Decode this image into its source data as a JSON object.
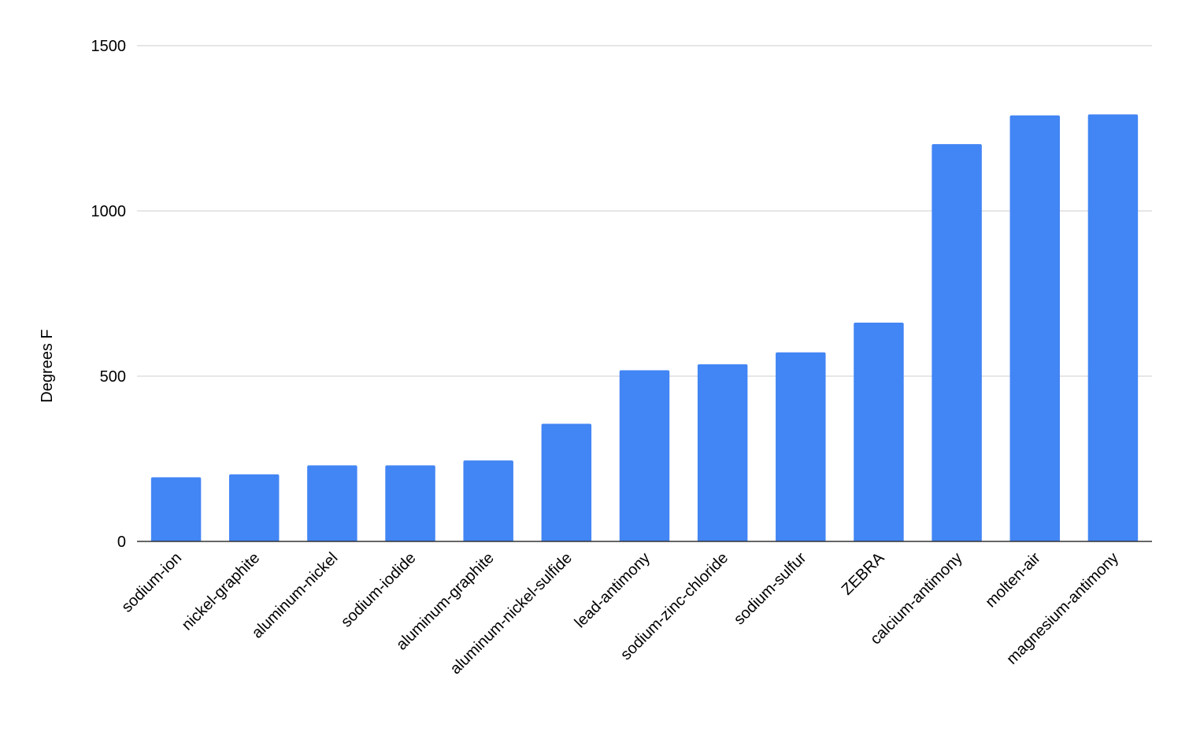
{
  "chart_data": {
    "type": "bar",
    "title": "",
    "xlabel": "",
    "ylabel": "Degrees F",
    "categories": [
      "sodium-ion",
      "nickel-graphite",
      "aluminum-nickel",
      "sodium-iodide",
      "aluminum-graphite",
      "aluminum-nickel-sulfide",
      "lead-antimony",
      "sodium-zinc-chloride",
      "sodium-sulfur",
      "ZEBRA",
      "calcium-antimony",
      "molten-air",
      "magnesium-antimony"
    ],
    "values": [
      194,
      203,
      230,
      230,
      245,
      356,
      518,
      536,
      572,
      662,
      1202,
      1289,
      1292
    ],
    "ylim": [
      0,
      1500
    ],
    "yticks": [
      "0",
      "500",
      "1000",
      "1500"
    ],
    "ytick_values": [
      0,
      500,
      1000,
      1500
    ],
    "grid": true,
    "legend": "none",
    "colors": {
      "bar": "#4285f4",
      "grid": "#cccccc",
      "axis": "#333333"
    }
  }
}
